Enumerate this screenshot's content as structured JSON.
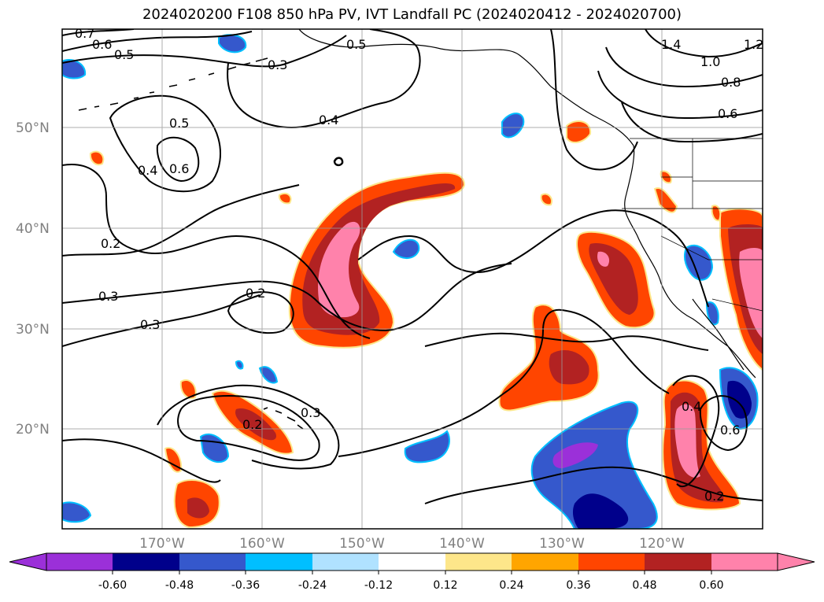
{
  "title": "2024020200 F108 850 hPa PV, IVT Landfall PC (2024020412 - 2024020700)",
  "latitude_labels": [
    "50°N",
    "40°N",
    "30°N",
    "20°N"
  ],
  "longitude_labels": [
    "170°W",
    "160°W",
    "150°W",
    "140°W",
    "130°W",
    "120°W"
  ],
  "contour_labels": [
    "0.7",
    "0.6",
    "0.5",
    "0.3",
    "0.5",
    "1.4",
    "1.2",
    "1.0",
    "0.8",
    "0.6",
    "0.5",
    "0.6",
    "0.4",
    "0.4",
    "0.2",
    "0.3",
    "0.3",
    "0.2",
    "0.2",
    "0.3",
    "0.4",
    "0.2",
    "0.6"
  ],
  "colorbar": {
    "ticks": [
      "-0.60",
      "-0.48",
      "-0.36",
      "-0.24",
      "-0.12",
      "0.12",
      "0.24",
      "0.36",
      "0.48",
      "0.60"
    ],
    "colors": [
      "#9b30d9",
      "#00008b",
      "#3558cc",
      "#00bfff",
      "#b0e2ff",
      "#ffffff",
      "#fde68a",
      "#ffa500",
      "#ff4500",
      "#b22222",
      "#ff82ab",
      "#ff82ab"
    ]
  }
}
